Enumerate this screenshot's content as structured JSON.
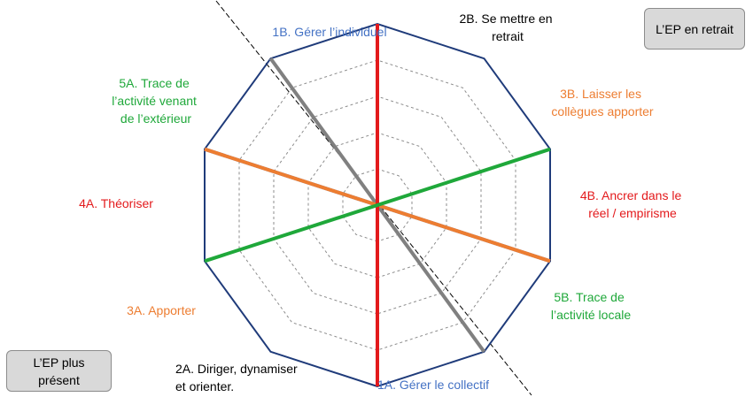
{
  "diagram": {
    "colors": {
      "outline": "#1f3b7a",
      "grid": "#8c8c8c",
      "blue": "#4472c4",
      "gray": "#808080",
      "orange": "#ed7d31",
      "red": "#e31a1c",
      "green": "#1fa83a"
    },
    "axes": [
      {
        "name": "axis-1",
        "color_key": "blue"
      },
      {
        "name": "axis-2",
        "color_key": "gray"
      },
      {
        "name": "axis-3",
        "color_key": "orange"
      },
      {
        "name": "axis-4",
        "color_key": "red"
      },
      {
        "name": "axis-5",
        "color_key": "green"
      }
    ],
    "labels": {
      "l1b": {
        "lines": [
          "1B. Gérer l’individuel"
        ],
        "color_key": "blue"
      },
      "l2b": {
        "lines": [
          "2B. Se mettre  en",
          "retrait"
        ],
        "color_key": "black"
      },
      "l3b": {
        "lines": [
          "3B. Laisser les",
          "collègues apporter"
        ],
        "color_key": "orange"
      },
      "l4b": {
        "lines": [
          "4B. Ancrer dans le",
          "réel / empirisme"
        ],
        "color_key": "red"
      },
      "l5b": {
        "lines": [
          "5B. Trace de",
          "l’activité locale"
        ],
        "color_key": "green"
      },
      "l1a": {
        "lines": [
          "1A. Gérer le collectif"
        ],
        "color_key": "blue"
      },
      "l2a": {
        "lines": [
          "2A. Diriger, dynamiser",
          "et orienter."
        ],
        "color_key": "black"
      },
      "l3a": {
        "lines": [
          "3A. Apporter"
        ],
        "color_key": "orange"
      },
      "l4a": {
        "lines": [
          "4A. Théoriser"
        ],
        "color_key": "red"
      },
      "l5a": {
        "lines": [
          "5A. Trace de",
          "l’activité venant",
          "de l’extérieur"
        ],
        "color_key": "green"
      }
    },
    "box_retrait": "L’EP en retrait",
    "box_present": [
      "L’EP plus",
      "présent"
    ]
  }
}
